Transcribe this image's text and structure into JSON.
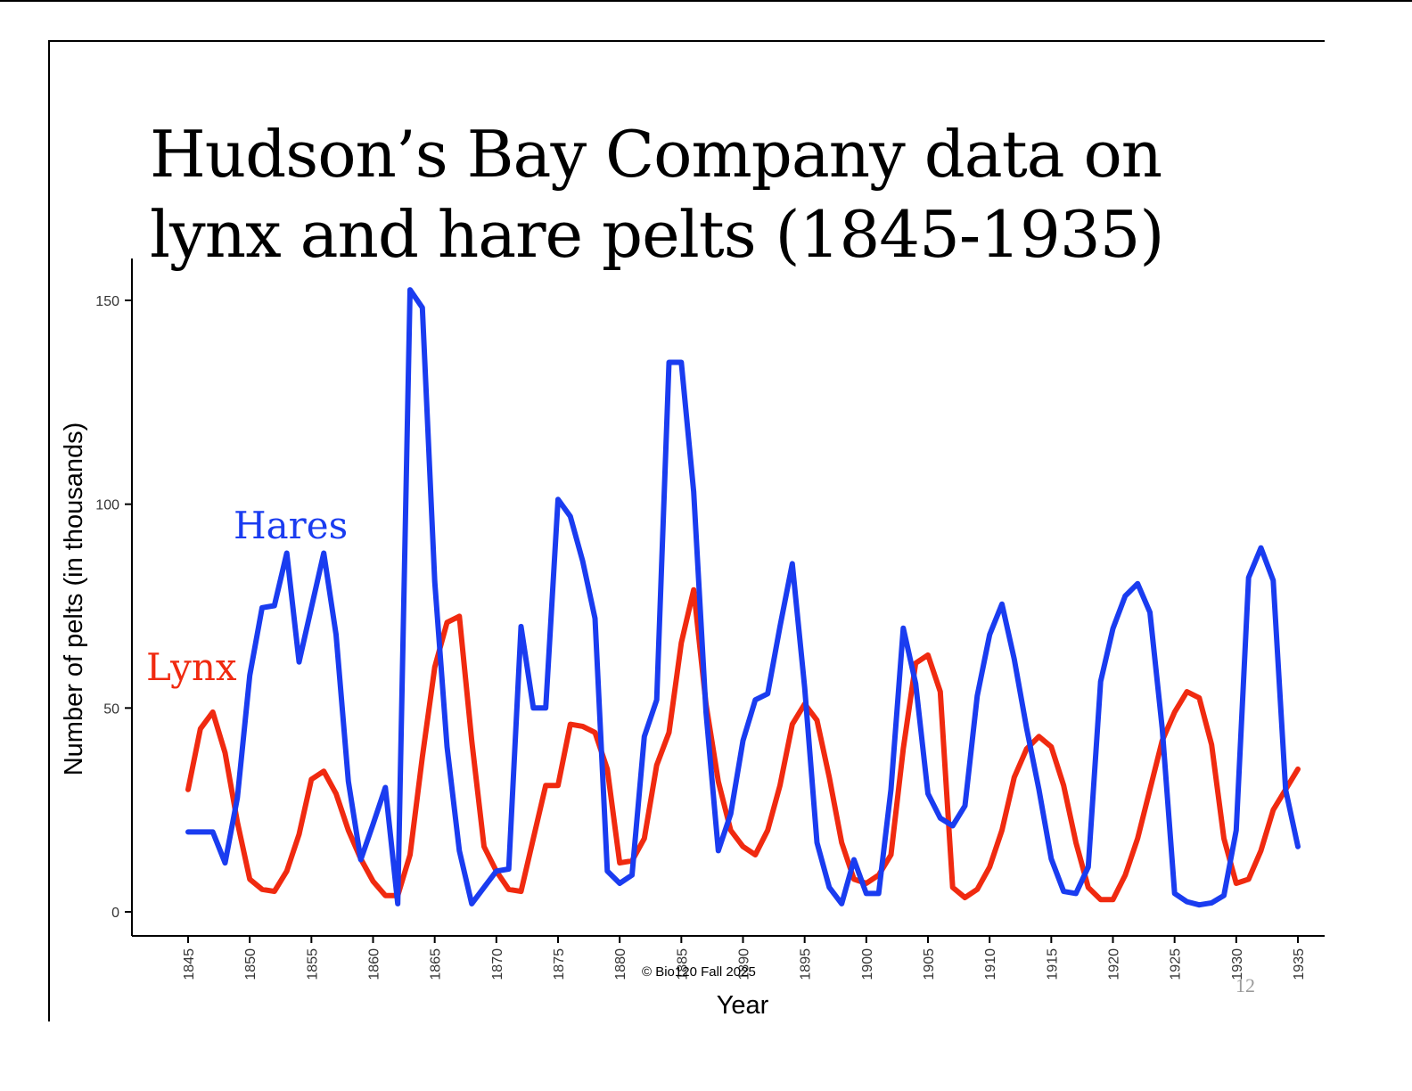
{
  "slide": {
    "title_line1": "Hudson’s Bay Company data on",
    "title_line2": "lynx and hare pelts (1845-1935)",
    "footer": "© Bio120 Fall 2025",
    "page_number": "12"
  },
  "chart_data": {
    "type": "line",
    "xlabel": "Year",
    "ylabel": "Number of pelts (in thousands)",
    "xlim": [
      1845,
      1935
    ],
    "ylim": [
      0,
      150
    ],
    "xticks": [
      1845,
      1850,
      1855,
      1860,
      1865,
      1870,
      1875,
      1880,
      1885,
      1890,
      1895,
      1900,
      1905,
      1910,
      1915,
      1920,
      1925,
      1930,
      1935
    ],
    "yticks": [
      0,
      50,
      100,
      150
    ],
    "grid": false,
    "x": [
      1845,
      1846,
      1847,
      1848,
      1849,
      1850,
      1851,
      1852,
      1853,
      1854,
      1855,
      1856,
      1857,
      1858,
      1859,
      1860,
      1861,
      1862,
      1863,
      1864,
      1865,
      1866,
      1867,
      1868,
      1869,
      1870,
      1871,
      1872,
      1873,
      1874,
      1875,
      1876,
      1877,
      1878,
      1879,
      1880,
      1881,
      1882,
      1883,
      1884,
      1885,
      1886,
      1887,
      1888,
      1889,
      1890,
      1891,
      1892,
      1893,
      1894,
      1895,
      1896,
      1897,
      1898,
      1899,
      1900,
      1901,
      1902,
      1903,
      1904,
      1905,
      1906,
      1907,
      1908,
      1909,
      1910,
      1911,
      1912,
      1913,
      1914,
      1915,
      1916,
      1917,
      1918,
      1919,
      1920,
      1921,
      1922,
      1923,
      1924,
      1925,
      1926,
      1927,
      1928,
      1929,
      1930,
      1931,
      1932,
      1933,
      1934,
      1935
    ],
    "series": [
      {
        "name": "Hares",
        "color": "#1a3cf0",
        "values": [
          19.6,
          19.6,
          19.6,
          12.0,
          28.0,
          58.0,
          74.6,
          75.1,
          88.0,
          61.3,
          74.6,
          88.0,
          68.0,
          32.0,
          12.8,
          21.5,
          30.5,
          2.0,
          152.6,
          148.2,
          81.0,
          40.5,
          15.0,
          2.0,
          6.0,
          10.0,
          10.5,
          70.0,
          50.0,
          50.0,
          101.2,
          97.0,
          86.0,
          72.0,
          10.0,
          7.0,
          9.0,
          43.0,
          52.0,
          134.8,
          134.8,
          103.0,
          49.0,
          15.0,
          24.0,
          42.0,
          52.0,
          53.5,
          70.0,
          85.4,
          55.0,
          17.0,
          6.0,
          2.0,
          12.8,
          4.5,
          4.5,
          30.0,
          69.6,
          56.0,
          29.0,
          23.0,
          21.1,
          26.0,
          53.0,
          68.0,
          75.5,
          62.0,
          45.0,
          30.0,
          13.0,
          5.0,
          4.5,
          11.0,
          56.5,
          69.5,
          77.5,
          80.5,
          73.5,
          45.0,
          4.5,
          2.5,
          1.7,
          2.2,
          4.0,
          20.0,
          82.0,
          89.3,
          81.3,
          30.0,
          16.0
        ]
      },
      {
        "name": "Lynx",
        "color": "#f02a10",
        "values": [
          30.0,
          44.9,
          49.0,
          39.0,
          22.0,
          8.0,
          5.5,
          5.0,
          10.0,
          19.0,
          32.5,
          34.5,
          29.0,
          20.0,
          13.0,
          7.5,
          4.0,
          4.0,
          14.0,
          38.0,
          60.0,
          71.0,
          72.5,
          42.0,
          16.0,
          10.0,
          5.5,
          5.0,
          18.0,
          31.0,
          31.0,
          46.0,
          45.5,
          44.0,
          35.0,
          12.0,
          12.5,
          18.0,
          36.0,
          44.0,
          66.0,
          79.0,
          51.0,
          32.0,
          20.0,
          16.0,
          14.0,
          20.0,
          31.0,
          46.0,
          51.0,
          47.0,
          33.0,
          17.0,
          8.0,
          7.0,
          9.0,
          14.0,
          40.0,
          61.0,
          63.0,
          54.0,
          6.0,
          3.5,
          5.5,
          11.0,
          20.0,
          33.0,
          40.0,
          43.0,
          40.5,
          31.0,
          17.0,
          6.0,
          3.0,
          3.0,
          9.0,
          18.0,
          30.0,
          42.0,
          49.0,
          54.0,
          52.5,
          41.0,
          18.0,
          7.0,
          8.0,
          15.0,
          25.0,
          30.0,
          35.0
        ]
      }
    ],
    "annotations": [
      {
        "text": "Hares",
        "color": "#1a3cf0"
      },
      {
        "text": "Lynx",
        "color": "#f02a10"
      }
    ]
  }
}
